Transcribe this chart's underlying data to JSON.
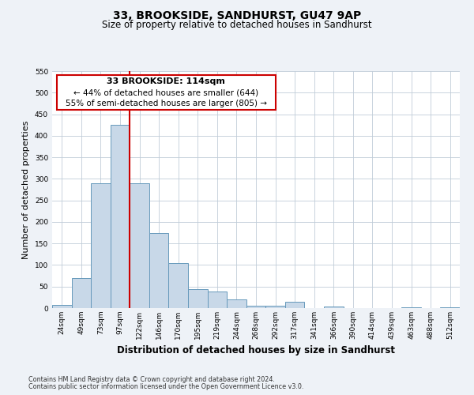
{
  "title": "33, BROOKSIDE, SANDHURST, GU47 9AP",
  "subtitle": "Size of property relative to detached houses in Sandhurst",
  "bar_labels": [
    "24sqm",
    "49sqm",
    "73sqm",
    "97sqm",
    "122sqm",
    "146sqm",
    "170sqm",
    "195sqm",
    "219sqm",
    "244sqm",
    "268sqm",
    "292sqm",
    "317sqm",
    "341sqm",
    "366sqm",
    "390sqm",
    "414sqm",
    "439sqm",
    "463sqm",
    "488sqm",
    "512sqm"
  ],
  "bar_values": [
    7,
    70,
    290,
    425,
    290,
    175,
    105,
    44,
    38,
    20,
    5,
    5,
    15,
    0,
    3,
    0,
    0,
    0,
    2,
    0,
    2
  ],
  "bar_color": "#c8d8e8",
  "bar_edgecolor": "#6699bb",
  "ylim": [
    0,
    550
  ],
  "yticks": [
    0,
    50,
    100,
    150,
    200,
    250,
    300,
    350,
    400,
    450,
    500,
    550
  ],
  "ylabel": "Number of detached properties",
  "xlabel": "Distribution of detached houses by size in Sandhurst",
  "vline_index": 4,
  "vline_color": "#cc0000",
  "annotation_title": "33 BROOKSIDE: 114sqm",
  "annotation_line1": "← 44% of detached houses are smaller (644)",
  "annotation_line2": "55% of semi-detached houses are larger (805) →",
  "annotation_box_color": "#cc0000",
  "footer_line1": "Contains HM Land Registry data © Crown copyright and database right 2024.",
  "footer_line2": "Contains public sector information licensed under the Open Government Licence v3.0.",
  "bg_color": "#eef2f7",
  "plot_bg_color": "#ffffff",
  "grid_color": "#c0ccd8",
  "title_fontsize": 10,
  "subtitle_fontsize": 8.5,
  "tick_fontsize": 6.5,
  "ylabel_fontsize": 8,
  "xlabel_fontsize": 8.5,
  "footer_fontsize": 5.8,
  "ann_title_fontsize": 8,
  "ann_text_fontsize": 7.5
}
